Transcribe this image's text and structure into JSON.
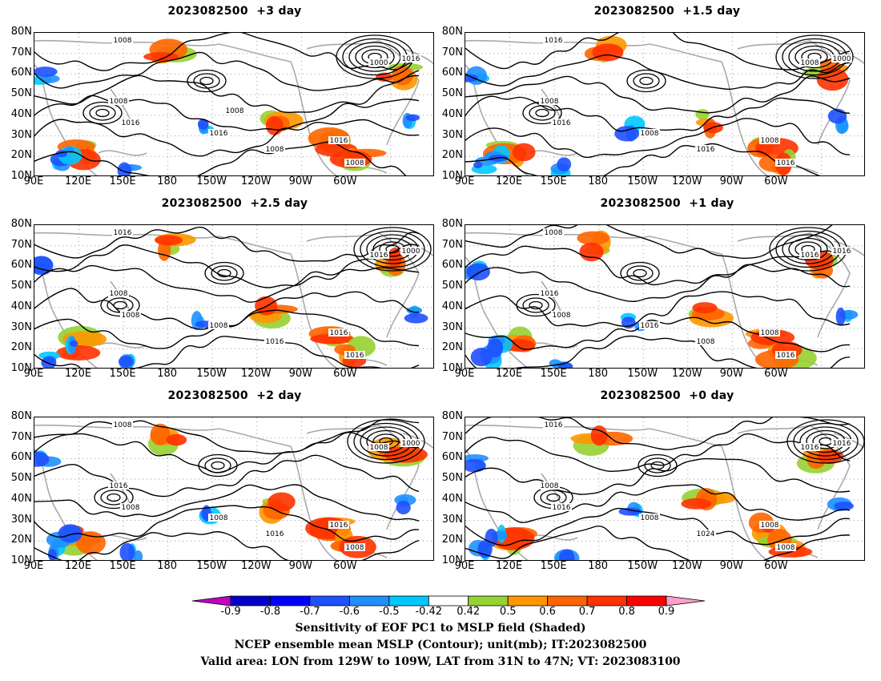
{
  "panels": [
    {
      "title": "2023082500  +3 day",
      "contour_labels": [
        "1008",
        "1008",
        "1016",
        "1016",
        "1008",
        "1000",
        "1016",
        "1016",
        "1008",
        "1008"
      ]
    },
    {
      "title": "2023082500  +1.5 day",
      "contour_labels": [
        "1016",
        "1008",
        "1016",
        "1008",
        "1016",
        "1008",
        "1000",
        "1008",
        "1016"
      ]
    },
    {
      "title": "2023082500  +2.5 day",
      "contour_labels": [
        "1016",
        "1008",
        "1008",
        "1008",
        "1016",
        "1016",
        "1000",
        "1016",
        "1016"
      ]
    },
    {
      "title": "2023082500  +1 day",
      "contour_labels": [
        "1008",
        "1016",
        "1008",
        "1016",
        "1008",
        "1016",
        "1016",
        "1008",
        "1016"
      ]
    },
    {
      "title": "2023082500  +2 day",
      "contour_labels": [
        "1008",
        "1016",
        "1008",
        "1008",
        "1016",
        "1008",
        "1000",
        "1016",
        "1008"
      ]
    },
    {
      "title": "2023082500  +0 day",
      "contour_labels": [
        "1016",
        "1008",
        "1016",
        "1008",
        "1024",
        "1016",
        "1016",
        "1008",
        "1008"
      ]
    }
  ],
  "axes": {
    "y_ticks": [
      "80N",
      "70N",
      "60N",
      "50N",
      "40N",
      "30N",
      "20N",
      "10N"
    ],
    "x_ticks": [
      "90E",
      "120E",
      "150E",
      "180",
      "150W",
      "120W",
      "90W",
      "60W"
    ]
  },
  "colorbar": {
    "labels": [
      "-0.9",
      "-0.8",
      "-0.7",
      "-0.6",
      "-0.5",
      "-0.42",
      "0.42",
      "0.5",
      "0.6",
      "0.7",
      "0.8",
      "0.9"
    ],
    "colors": [
      "#c000c0",
      "#0000c8",
      "#0000ff",
      "#1e50ff",
      "#1e90ff",
      "#00c8ff",
      "#ffffff",
      "#96d232",
      "#ff9600",
      "#ff6400",
      "#ff3200",
      "#ff0000",
      "#ffa0c8"
    ]
  },
  "footer": {
    "line1": "Sensitivity of EOF PC1 to MSLP field (Shaded)",
    "line2": "NCEP ensemble mean MSLP (Contour); unit(mb); IT:2023082500",
    "line3": "Valid area: LON from 129W to 109W, LAT from 31N to 47N; VT: 2023083100"
  }
}
